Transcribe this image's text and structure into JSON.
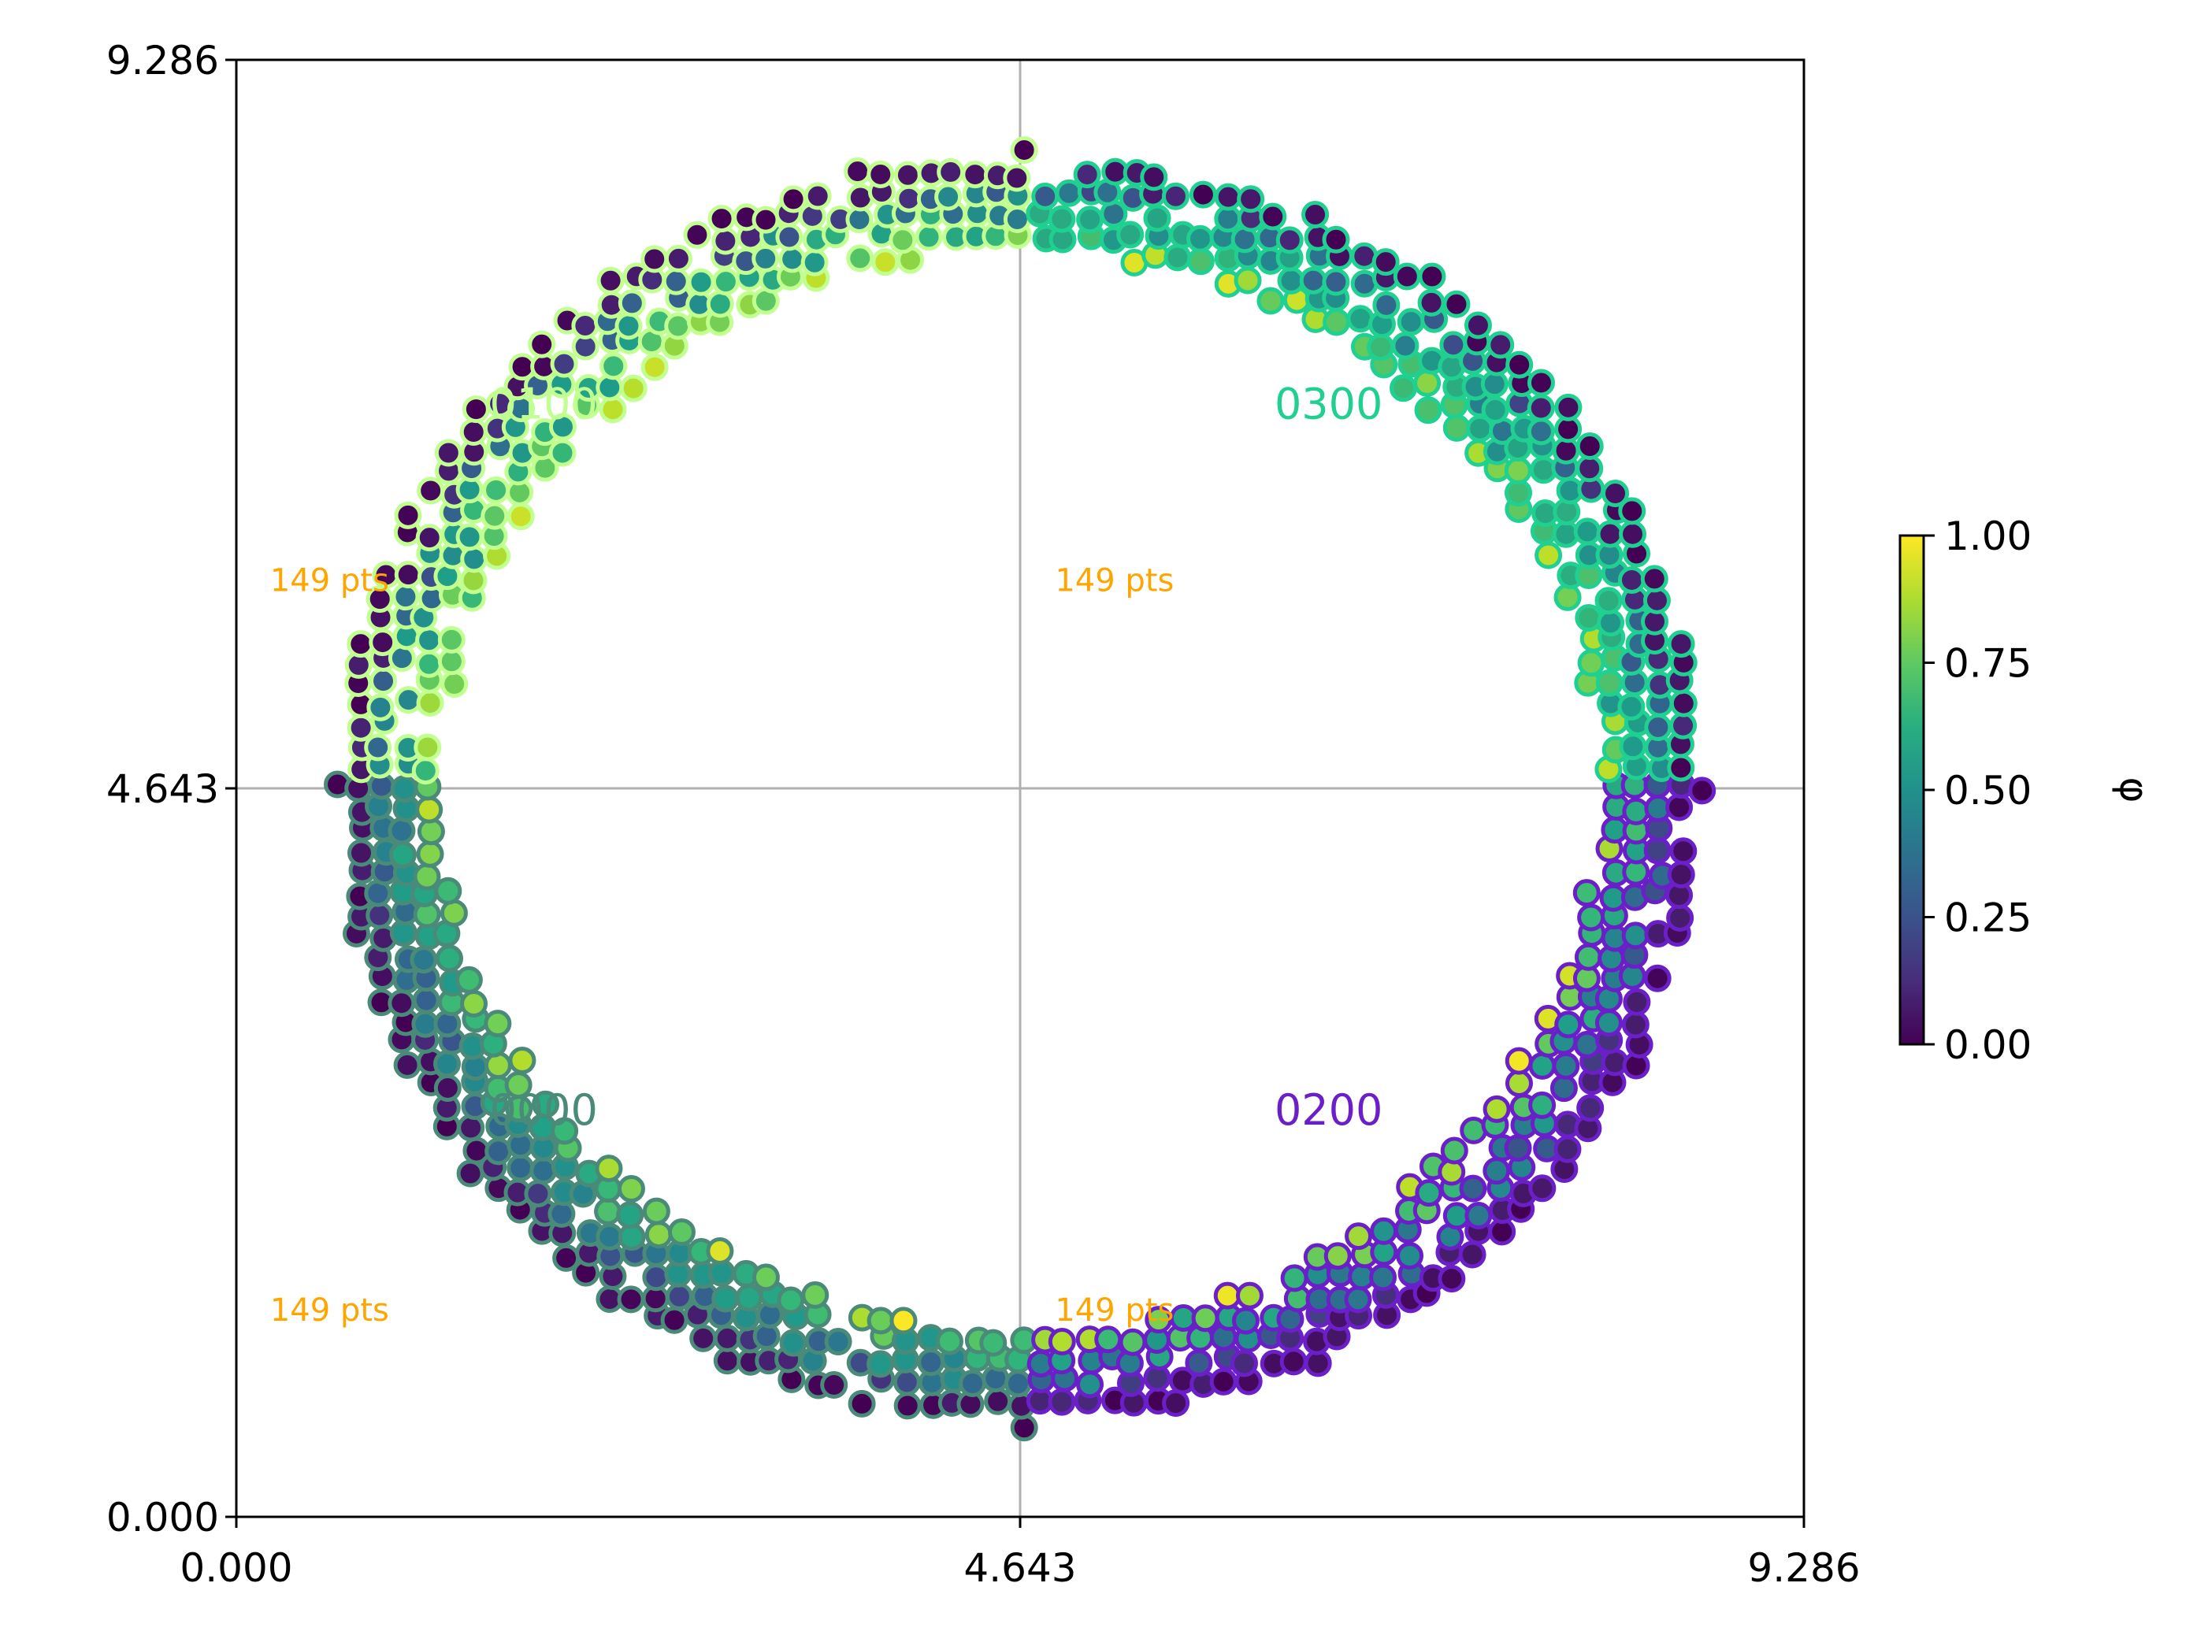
{
  "chart_data": {
    "type": "scatter",
    "xlim": [
      0.0,
      9.286
    ],
    "ylim": [
      0.0,
      9.286
    ],
    "x_ticks": [
      {
        "value": 0.0,
        "label": "0.000"
      },
      {
        "value": 4.643,
        "label": "4.643"
      },
      {
        "value": 9.286,
        "label": "9.286"
      }
    ],
    "y_ticks": [
      {
        "value": 0.0,
        "label": "0.000"
      },
      {
        "value": 4.643,
        "label": "4.643"
      },
      {
        "value": 9.286,
        "label": "9.286"
      }
    ],
    "grid": "center lines at x=4.643 and y=4.643",
    "ring": {
      "center": [
        4.643,
        4.643
      ],
      "inner_radius": 3.43,
      "outer_radius": 4.05,
      "grid_step": 0.135
    },
    "quadrants": [
      {
        "label": "0100",
        "edge_color": "#C0FF90",
        "label_x": 1.5,
        "label_y": 7.0,
        "count_label": "149 pts",
        "count_x": 0.2,
        "count_y": 5.9
      },
      {
        "label": "0300",
        "edge_color": "#20D090",
        "label_x": 6.15,
        "label_y": 7.0,
        "count_label": "149 pts",
        "count_x": 4.85,
        "count_y": 5.9
      },
      {
        "label": "0000",
        "edge_color": "#4A8A78",
        "label_x": 1.5,
        "label_y": 2.5,
        "count_label": "149 pts",
        "count_x": 0.2,
        "count_y": 1.25
      },
      {
        "label": "0200",
        "edge_color": "#6A1FC8",
        "label_x": 6.15,
        "label_y": 2.5,
        "count_label": "149 pts",
        "count_x": 4.85,
        "count_y": 1.25
      }
    ],
    "colorbar": {
      "label": "φ",
      "range": [
        0.0,
        1.0
      ],
      "colormap": "viridis",
      "ticks": [
        {
          "value": 0.0,
          "label": "0.00"
        },
        {
          "value": 0.25,
          "label": "0.25"
        },
        {
          "value": 0.5,
          "label": "0.50"
        },
        {
          "value": 0.75,
          "label": "0.75"
        },
        {
          "value": 1.0,
          "label": "1.00"
        }
      ]
    },
    "colors": {
      "count_label": "#FFA500",
      "grid": "#B0B0B0",
      "axes": "#000000"
    }
  }
}
